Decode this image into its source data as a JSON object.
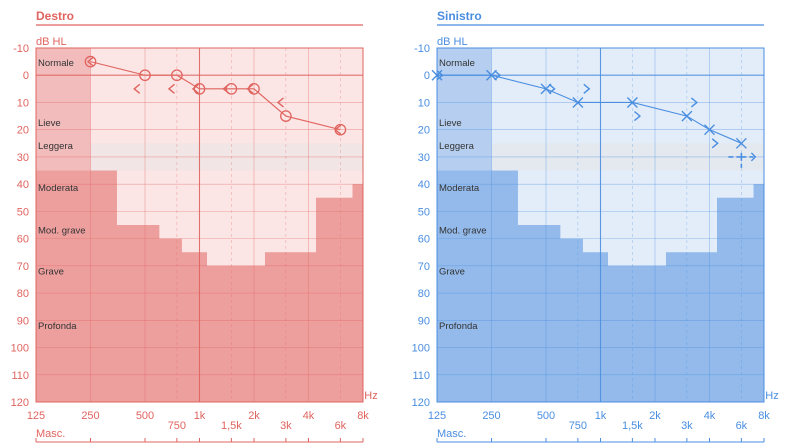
{
  "panels": [
    {
      "title": "Destro",
      "color": "#e0645f",
      "panel_fill": "#f3bcbc",
      "marker": "circle",
      "masking_marker": "chevron-left"
    },
    {
      "title": "Sinistro",
      "color": "#4a8ee0",
      "panel_fill": "#b6cff0",
      "marker": "cross",
      "masking_marker": "chevron-right"
    }
  ],
  "axis": {
    "y_unit": "dB HL",
    "x_unit": "Hz",
    "masking_label": "Masc.",
    "y_ticks": [
      "-10",
      "0",
      "10",
      "20",
      "30",
      "40",
      "50",
      "60",
      "70",
      "80",
      "90",
      "100",
      "110",
      "120"
    ],
    "x_main_ticks": [
      "125",
      "250",
      "500",
      "1k",
      "2k",
      "4k",
      "8k"
    ],
    "x_inter_ticks": [
      "750",
      "1,5k",
      "3k",
      "6k"
    ]
  },
  "zones": [
    "Normale",
    "Lieve",
    "Leggera",
    "Moderata",
    "Mod. grave",
    "Grave",
    "Profonda"
  ],
  "chart_data": [
    {
      "type": "line",
      "title": "Destro",
      "xlabel": "Hz",
      "ylabel": "dB HL",
      "x_scale": "log2",
      "xlim": [
        125,
        8000
      ],
      "ylim": [
        -10,
        120
      ],
      "y_inverted": true,
      "grid": true,
      "series": [
        {
          "name": "air_conduction",
          "points": [
            [
              250,
              -5
            ],
            [
              500,
              0
            ],
            [
              750,
              0
            ],
            [
              1000,
              5
            ],
            [
              1500,
              5
            ],
            [
              2000,
              5
            ],
            [
              3000,
              15
            ],
            [
              6000,
              20
            ]
          ]
        },
        {
          "name": "bone_conduction",
          "points": [
            [
              250,
              -5
            ],
            [
              450,
              5
            ],
            [
              700,
              5
            ],
            [
              950,
              5
            ],
            [
              1400,
              5
            ],
            [
              1900,
              5
            ],
            [
              2800,
              10
            ],
            [
              5800,
              20
            ]
          ]
        }
      ]
    },
    {
      "type": "line",
      "title": "Sinistro",
      "xlabel": "Hz",
      "ylabel": "dB HL",
      "x_scale": "log2",
      "xlim": [
        125,
        8000
      ],
      "ylim": [
        -10,
        120
      ],
      "y_inverted": true,
      "grid": true,
      "series": [
        {
          "name": "air_conduction",
          "points": [
            [
              125,
              0
            ],
            [
              250,
              0
            ],
            [
              500,
              5
            ],
            [
              750,
              10
            ],
            [
              1500,
              10
            ],
            [
              3000,
              15
            ],
            [
              4000,
              20
            ],
            [
              6000,
              25
            ]
          ]
        },
        {
          "name": "bone_conduction",
          "points": [
            [
              130,
              0
            ],
            [
              270,
              0
            ],
            [
              540,
              5
            ],
            [
              840,
              5
            ],
            [
              1600,
              15
            ],
            [
              3300,
              10
            ],
            [
              4300,
              25
            ]
          ]
        },
        {
          "name": "masked_marker",
          "points": [
            [
              6000,
              30
            ]
          ]
        }
      ]
    }
  ]
}
